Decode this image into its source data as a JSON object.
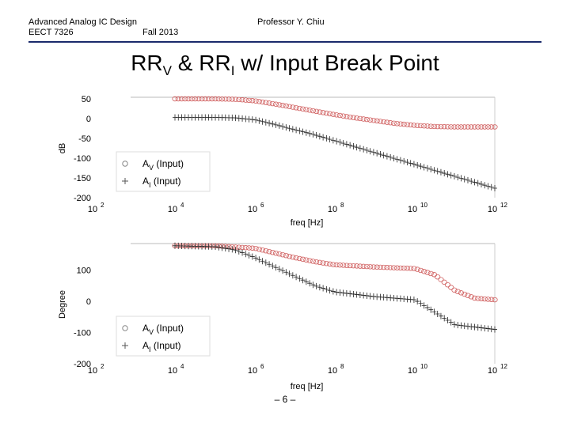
{
  "header": {
    "course": "Advanced Analog IC Design",
    "code": "EECT 7326",
    "term": "Fall 2013",
    "professor": "Professor Y. Chiu"
  },
  "title": {
    "part1": "RR",
    "sub1": "V",
    "part2": " & RR",
    "sub2": "I",
    "part3": " w/ Input Break Point"
  },
  "page_number": "– 6 –",
  "chart_data": [
    {
      "type": "scatter",
      "x_scale": "log",
      "xlim": [
        100,
        1000000000000
      ],
      "x_tick_labels": [
        "10^2",
        "10^4",
        "10^6",
        "10^8",
        "10^10",
        "10^12"
      ],
      "xlabel": "freq [Hz]",
      "ylabel": "dB",
      "ylim": [
        -200,
        50
      ],
      "y_ticks": [
        50,
        0,
        -50,
        -100,
        -150,
        -200
      ],
      "grid": false,
      "legend_position": "bottom-left",
      "series": [
        {
          "name": "A_V (Input)",
          "marker": "circle",
          "color": "#d06060",
          "x_range": [
            10000,
            1000000000000
          ],
          "points": [
            [
              4,
              50
            ],
            [
              5,
              50
            ],
            [
              5.5,
              49
            ],
            [
              6,
              45
            ],
            [
              6.5,
              37
            ],
            [
              7,
              28
            ],
            [
              7.5,
              19
            ],
            [
              8,
              10
            ],
            [
              8.5,
              2
            ],
            [
              9,
              -5
            ],
            [
              9.5,
              -12
            ],
            [
              10,
              -17
            ],
            [
              10.5,
              -20
            ],
            [
              11,
              -21
            ],
            [
              12,
              -21
            ]
          ]
        },
        {
          "name": "A_I (Input)",
          "marker": "plus",
          "color": "#222222",
          "x_range": [
            10000,
            1000000000000
          ],
          "points": [
            [
              4,
              3
            ],
            [
              5,
              3
            ],
            [
              5.5,
              2
            ],
            [
              6,
              -3
            ],
            [
              6.5,
              -15
            ],
            [
              7,
              -28
            ],
            [
              7.5,
              -41
            ],
            [
              8,
              -56
            ],
            [
              8.5,
              -71
            ],
            [
              9,
              -86
            ],
            [
              9.5,
              -101
            ],
            [
              10,
              -116
            ],
            [
              10.5,
              -131
            ],
            [
              11,
              -146
            ],
            [
              12,
              -176
            ]
          ]
        }
      ]
    },
    {
      "type": "scatter",
      "x_scale": "log",
      "xlim": [
        100,
        1000000000000
      ],
      "x_tick_labels": [
        "10^2",
        "10^4",
        "10^6",
        "10^8",
        "10^10",
        "10^12"
      ],
      "xlabel": "freq [Hz]",
      "ylabel": "Degree",
      "ylim": [
        -200,
        180
      ],
      "y_ticks": [
        100,
        0,
        -100,
        -200
      ],
      "grid": false,
      "legend_position": "bottom-left",
      "series": [
        {
          "name": "A_V (Input)",
          "marker": "circle",
          "color": "#d06060",
          "x_range": [
            10000,
            1000000000000
          ],
          "points": [
            [
              4,
              178
            ],
            [
              5,
              178
            ],
            [
              6,
              170
            ],
            [
              6.5,
              155
            ],
            [
              7,
              140
            ],
            [
              7.5,
              127
            ],
            [
              8,
              117
            ],
            [
              9,
              110
            ],
            [
              10,
              105
            ],
            [
              10.5,
              85
            ],
            [
              11,
              35
            ],
            [
              11.5,
              10
            ],
            [
              12,
              5
            ]
          ]
        },
        {
          "name": "A_I (Input)",
          "marker": "plus",
          "color": "#222222",
          "x_range": [
            10000,
            1000000000000
          ],
          "points": [
            [
              4,
              178
            ],
            [
              5,
              175
            ],
            [
              5.5,
              165
            ],
            [
              6,
              140
            ],
            [
              6.5,
              110
            ],
            [
              7,
              80
            ],
            [
              7.5,
              50
            ],
            [
              8,
              30
            ],
            [
              9,
              15
            ],
            [
              10,
              5
            ],
            [
              10.5,
              -35
            ],
            [
              11,
              -75
            ],
            [
              12,
              -90
            ]
          ]
        }
      ]
    }
  ]
}
